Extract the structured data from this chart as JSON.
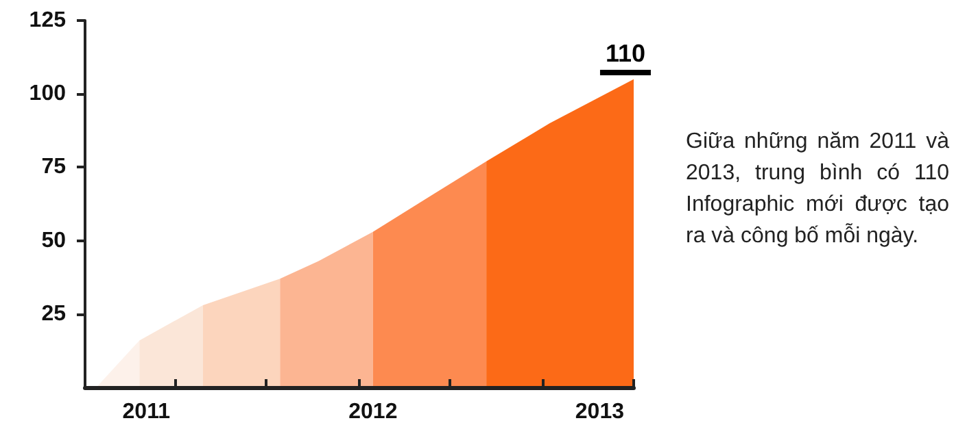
{
  "chart_data": {
    "type": "area",
    "annotations": [
      {
        "text": "110",
        "x": 2013.15,
        "y": 106
      },
      "Giữa những năm 2011 và 2013, trung bình có 110 Infographic mới được tạo ra và công bố mỗi ngày."
    ],
    "series": [
      {
        "color": "#fdf1ea",
        "x": [
          2010.78,
          2010.97
        ],
        "values": [
          0,
          16
        ]
      },
      {
        "color": "#fbe6d8",
        "x": [
          2010.97,
          2011.25
        ],
        "values": [
          16,
          28
        ]
      },
      {
        "color": "#fcd5bd",
        "x": [
          2011.25,
          2011.59
        ],
        "values": [
          28,
          37
        ]
      },
      {
        "color": "#fcb592",
        "x": [
          2011.59,
          2011.76,
          2012.0
        ],
        "values": [
          37,
          43,
          53
        ]
      },
      {
        "color": "#fd8a50",
        "x": [
          2012.0,
          2012.27,
          2012.5
        ],
        "values": [
          53,
          66,
          77
        ]
      },
      {
        "color": "#fc6a17",
        "x": [
          2012.5,
          2012.78,
          2013.15
        ],
        "values": [
          77,
          90,
          105
        ]
      }
    ],
    "xlim": [
      2010.73,
      2013.15
    ],
    "xticks": [
      {
        "value": 2011,
        "label": "2011"
      },
      {
        "value": 2012,
        "label": "2012"
      },
      {
        "value": 2013,
        "label": "2013"
      },
      {
        "value": 2011.13,
        "label": null
      },
      {
        "value": 2011.53,
        "label": null
      },
      {
        "value": 2011.94,
        "label": null
      },
      {
        "value": 2012.34,
        "label": null
      },
      {
        "value": 2012.75,
        "label": null
      },
      {
        "value": 2013.15,
        "label": null
      }
    ],
    "ylim": [
      0,
      125
    ],
    "yticks": [
      25,
      50,
      75,
      100,
      125
    ],
    "grid": false,
    "marker": "none"
  }
}
